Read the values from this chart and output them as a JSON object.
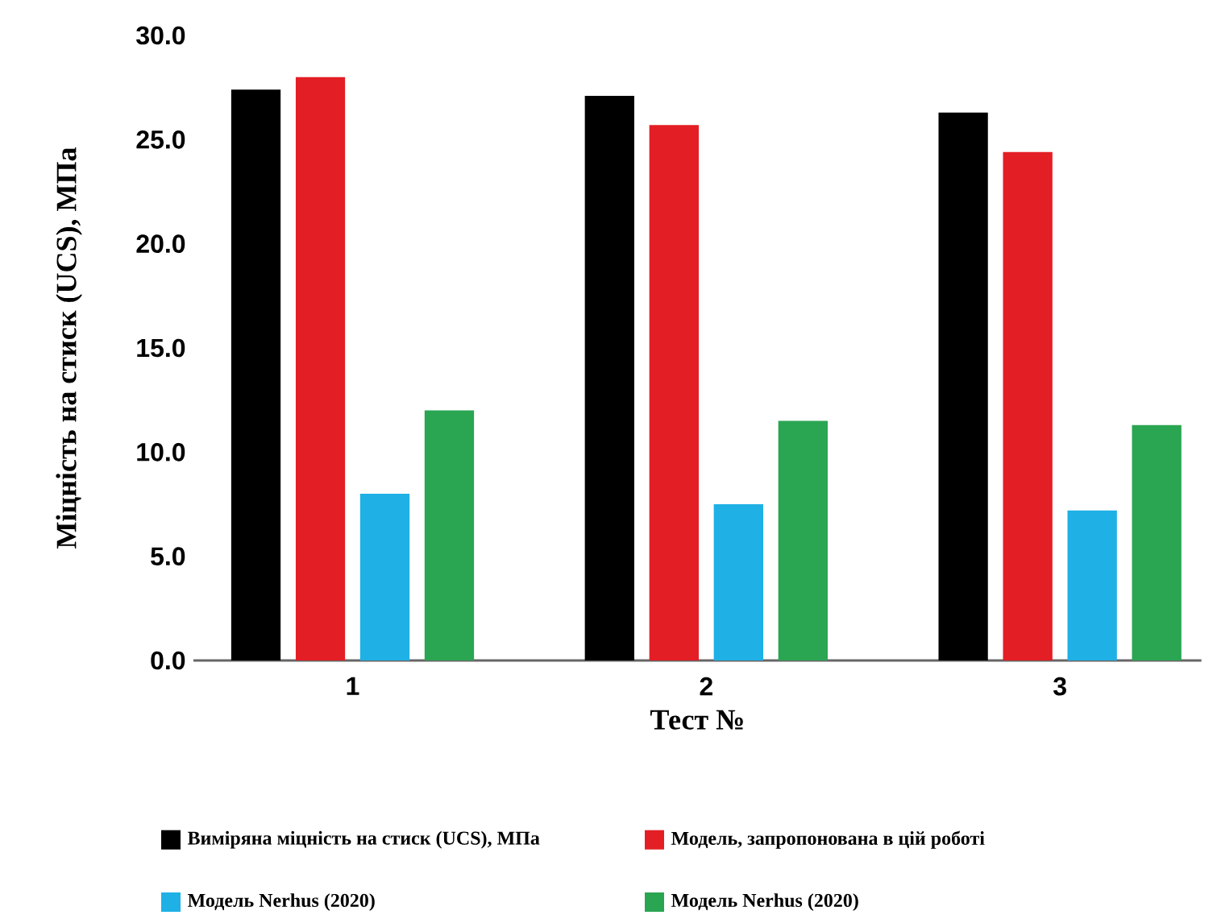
{
  "chart_data": {
    "type": "bar",
    "xlabel": "Тест №",
    "ylabel": "Міцність на стиск (UCS), МПа",
    "categories": [
      "1",
      "2",
      "3"
    ],
    "series": [
      {
        "name": "Виміряна міцність на стиск (UCS), МПа",
        "color": "#000000",
        "values": [
          27.4,
          27.1,
          26.3
        ]
      },
      {
        "name": "Модель, запропонована в цій роботі",
        "color": "#e31e24",
        "values": [
          28.0,
          25.7,
          24.4
        ]
      },
      {
        "name": "Модель Nerhus (2020)",
        "color": "#1fb0e6",
        "values": [
          8.0,
          7.5,
          7.2
        ]
      },
      {
        "name": "Модель Nerhus (2020)",
        "color": "#2aa552",
        "values": [
          12.0,
          11.5,
          11.3
        ]
      }
    ],
    "ylim": [
      0,
      30
    ],
    "yticks": [
      {
        "value": 0,
        "label": "0.0"
      },
      {
        "value": 5,
        "label": "5.0"
      },
      {
        "value": 10,
        "label": "10.0"
      },
      {
        "value": 15,
        "label": "15.0"
      },
      {
        "value": 20,
        "label": "20.0"
      },
      {
        "value": 25,
        "label": "25.0"
      },
      {
        "value": 30,
        "label": "30.0"
      }
    ],
    "grid": false,
    "legend": "bottom"
  }
}
